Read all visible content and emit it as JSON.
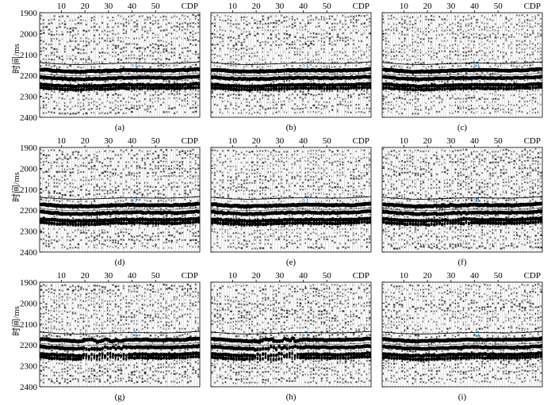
{
  "figure": {
    "ylabel": "时间/ms",
    "cdp_label": "CDP",
    "xticks": [
      "10",
      "20",
      "30",
      "40",
      "50"
    ],
    "yticks": [
      "1900",
      "2000",
      "2100",
      "2200",
      "2300",
      "2400"
    ],
    "horizon_label": "s1",
    "horizon_color": "#2a8fd0",
    "panels": [
      {
        "id": "a",
        "label": "(a)",
        "noise": 0.35,
        "disrupt": 0.0
      },
      {
        "id": "b",
        "label": "(b)",
        "noise": 0.35,
        "disrupt": 0.0
      },
      {
        "id": "c",
        "label": "(c)",
        "noise": 0.4,
        "disrupt": 0.0
      },
      {
        "id": "d",
        "label": "(d)",
        "noise": 0.4,
        "disrupt": 0.0
      },
      {
        "id": "e",
        "label": "(e)",
        "noise": 0.35,
        "disrupt": 0.0
      },
      {
        "id": "f",
        "label": "(f)",
        "noise": 0.7,
        "disrupt": 0.3
      },
      {
        "id": "g",
        "label": "(g)",
        "noise": 0.55,
        "disrupt": 0.8
      },
      {
        "id": "h",
        "label": "(h)",
        "noise": 0.55,
        "disrupt": 0.8
      },
      {
        "id": "i",
        "label": "(i)",
        "noise": 0.45,
        "disrupt": 0.0
      }
    ]
  }
}
